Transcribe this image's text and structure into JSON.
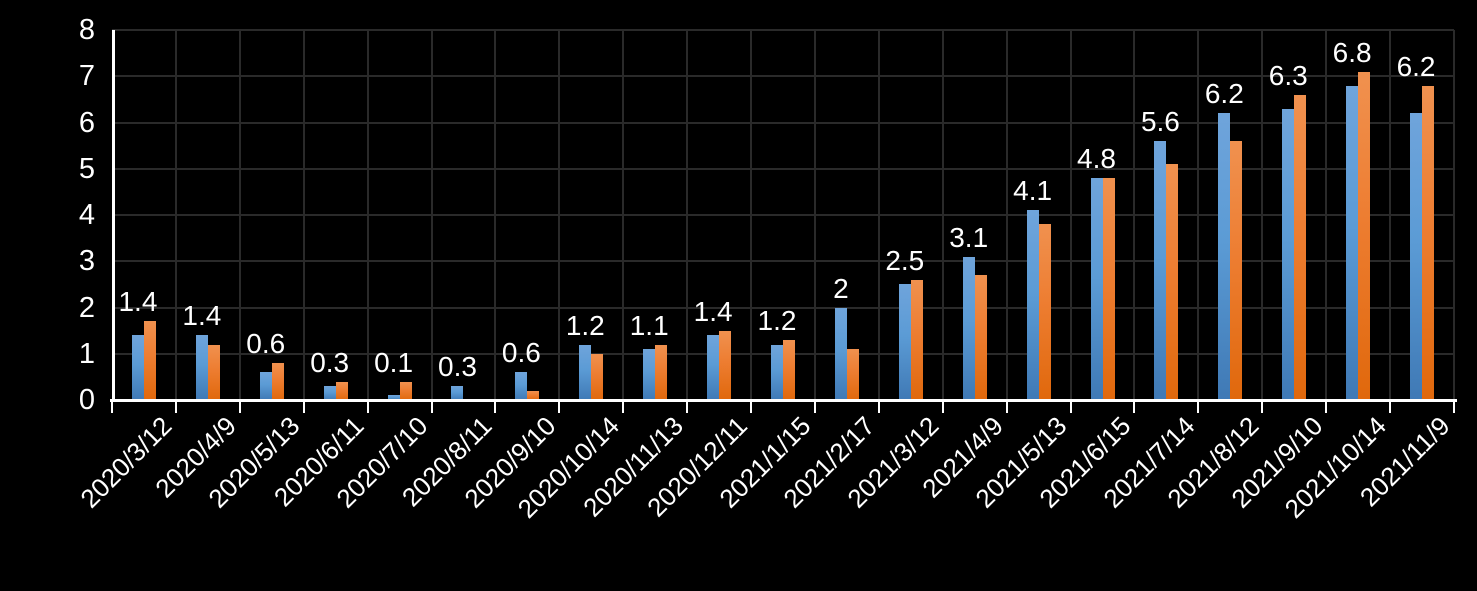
{
  "chart_data": {
    "type": "bar",
    "title": "",
    "categories": [
      "2020/3/12",
      "2020/4/9",
      "2020/5/13",
      "2020/6/11",
      "2020/7/10",
      "2020/8/11",
      "2020/9/10",
      "2020/10/14",
      "2020/11/13",
      "2020/12/11",
      "2021/1/15",
      "2021/2/17",
      "2021/3/12",
      "2021/4/9",
      "2021/5/13",
      "2021/6/15",
      "2021/7/14",
      "2021/8/12",
      "2021/9/10",
      "2021/10/14",
      "2021/11/9"
    ],
    "series": [
      {
        "name": "blue-series",
        "color": "#5B9BD5",
        "gradient_top": "#6FA4DB",
        "gradient_bottom": "#3F79B5",
        "values": [
          1.4,
          1.4,
          0.6,
          0.3,
          0.1,
          0.3,
          0.6,
          1.2,
          1.1,
          1.4,
          1.2,
          2,
          2.5,
          3.1,
          4.1,
          4.8,
          5.6,
          6.2,
          6.3,
          6.8,
          6.2
        ]
      },
      {
        "name": "orange-series",
        "color": "#ED7D31",
        "gradient_top": "#F0914F",
        "gradient_bottom": "#E0680C",
        "values": [
          1.7,
          1.2,
          0.8,
          0.4,
          0.4,
          0,
          0.2,
          1.0,
          1.2,
          1.5,
          1.3,
          1.1,
          2.6,
          2.7,
          3.8,
          4.8,
          5.1,
          5.6,
          6.6,
          7.1,
          6.8
        ]
      }
    ],
    "data_labels": [
      "1.4",
      "1.4",
      "0.6",
      "0.3",
      "0.1",
      "0.3",
      "0.6",
      "1.2",
      "1.1",
      "1.4",
      "1.2",
      "2",
      "2.5",
      "3.1",
      "4.1",
      "4.8",
      "5.6",
      "6.2",
      "6.3",
      "6.8",
      "6.2"
    ],
    "xlabel": "",
    "ylabel": "",
    "y_axis": {
      "min": 0,
      "max": 8,
      "tick_interval": 1,
      "ticks": [
        "0",
        "1",
        "2",
        "3",
        "4",
        "5",
        "6",
        "7",
        "8"
      ]
    },
    "grid": true,
    "legend": "none",
    "colors": {
      "background": "#000000",
      "axis_line": "#FFFFFF",
      "gridline": "#2A2A2A",
      "text": "#FFFFFF"
    }
  }
}
